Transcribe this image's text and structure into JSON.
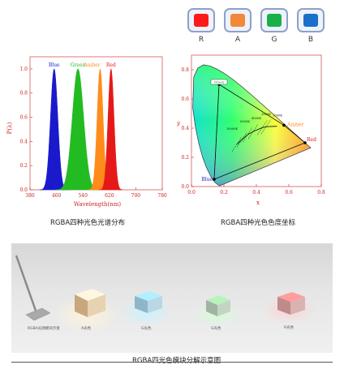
{
  "color_swatches": [
    {
      "label": "R",
      "color": "#ff1a1a"
    },
    {
      "label": "A",
      "color": "#f2883a"
    },
    {
      "label": "G",
      "color": "#19b04a"
    },
    {
      "label": "B",
      "color": "#1a6fc9"
    }
  ],
  "spectrum_panel": {
    "caption": "RGBA四种光色光谱分布",
    "chart_data": {
      "type": "line",
      "xlabel": "Wavelength(nm)",
      "ylabel": "P(λ)",
      "xlim": [
        380,
        780
      ],
      "ylim": [
        0,
        1.1
      ],
      "x_ticks": [
        380,
        460,
        540,
        620,
        700,
        780
      ],
      "y_ticks": [
        0.0,
        0.2,
        0.4,
        0.6,
        0.8,
        1.0
      ],
      "series": [
        {
          "name": "Blue",
          "color": "#1a1acc",
          "peak_nm": 453,
          "width_nm": 11,
          "peak": 1.0
        },
        {
          "name": "Green",
          "color": "#22bb22",
          "peak_nm": 525,
          "width_nm": 17,
          "peak": 1.0
        },
        {
          "name": "Amber",
          "color": "#ff8c1a",
          "peak_nm": 592,
          "width_nm": 9,
          "peak": 1.0
        },
        {
          "name": "Red",
          "color": "#e61919",
          "peak_nm": 625,
          "width_nm": 9,
          "peak": 1.0
        }
      ]
    }
  },
  "cie_panel": {
    "caption": "RGBA四种光色色度坐标",
    "chart_data": {
      "type": "scatter",
      "xlabel": "x",
      "ylabel": "y",
      "xlim": [
        0.0,
        0.8
      ],
      "ylim": [
        0.0,
        0.9
      ],
      "x_ticks": [
        0.0,
        0.2,
        0.4,
        0.6,
        0.8
      ],
      "y_ticks": [
        0.0,
        0.2,
        0.4,
        0.6,
        0.8
      ],
      "points": [
        {
          "name": "Green",
          "x": 0.17,
          "y": 0.7
        },
        {
          "name": "Blue",
          "x": 0.14,
          "y": 0.05
        },
        {
          "name": "Amber",
          "x": 0.57,
          "y": 0.42
        },
        {
          "name": "Red",
          "x": 0.7,
          "y": 0.3
        }
      ],
      "planck_labels": [
        "10000K",
        "6500K",
        "4000K",
        "3000K",
        "2000K"
      ]
    }
  },
  "photo_panel": {
    "caption": "RGBA四光色模块分解示意图",
    "labels": [
      "RGBA光源模块示意",
      "A光色",
      "G光色",
      "G光色",
      "R光色"
    ]
  }
}
